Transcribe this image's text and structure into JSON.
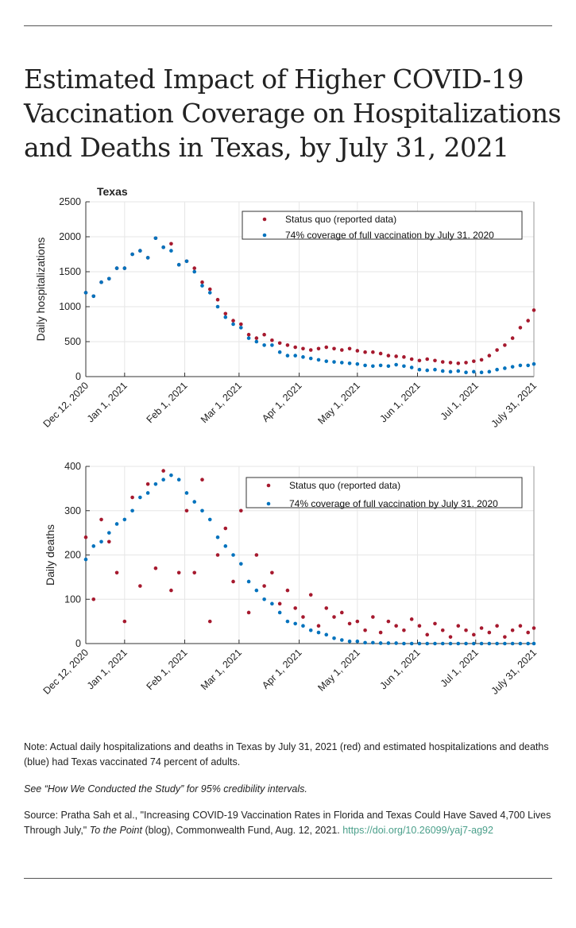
{
  "title": "Estimated Impact of Higher COVID-19 Vaccination Coverage on Hospitalizations and Deaths in Texas, by July 31, 2021",
  "colors": {
    "status_quo": "#a6192e",
    "coverage_74": "#0072bd",
    "link": "#4a9f8a"
  },
  "chart_data": [
    {
      "type": "scatter",
      "title": "Texas",
      "ylabel": "Daily hospitalizations",
      "xlabel": "",
      "ylim": [
        0,
        2500
      ],
      "yticks": [
        0,
        500,
        1000,
        1500,
        2000,
        2500
      ],
      "xlim": [
        "2020-12-12",
        "2021-07-31"
      ],
      "xticks": [
        {
          "date": "2020-12-12",
          "label": "Dec 12, 2020"
        },
        {
          "date": "2021-01-01",
          "label": "Jan 1, 2021"
        },
        {
          "date": "2021-02-01",
          "label": "Feb 1, 2021"
        },
        {
          "date": "2021-03-01",
          "label": "Mar 1, 2021"
        },
        {
          "date": "2021-04-01",
          "label": "Apr 1, 2021"
        },
        {
          "date": "2021-05-01",
          "label": "May 1, 2021"
        },
        {
          "date": "2021-06-01",
          "label": "Jun 1, 2021"
        },
        {
          "date": "2021-07-01",
          "label": "Jul 1, 2021"
        },
        {
          "date": "2021-07-31",
          "label": "July 31, 2021"
        }
      ],
      "grid": true,
      "legend_position": "top-right",
      "x": [
        "2020-12-12",
        "2020-12-16",
        "2020-12-20",
        "2020-12-24",
        "2020-12-28",
        "2021-01-01",
        "2021-01-05",
        "2021-01-09",
        "2021-01-13",
        "2021-01-17",
        "2021-01-21",
        "2021-01-25",
        "2021-01-29",
        "2021-02-02",
        "2021-02-06",
        "2021-02-10",
        "2021-02-14",
        "2021-02-18",
        "2021-02-22",
        "2021-02-26",
        "2021-03-02",
        "2021-03-06",
        "2021-03-10",
        "2021-03-14",
        "2021-03-18",
        "2021-03-22",
        "2021-03-26",
        "2021-03-30",
        "2021-04-03",
        "2021-04-07",
        "2021-04-11",
        "2021-04-15",
        "2021-04-19",
        "2021-04-23",
        "2021-04-27",
        "2021-05-01",
        "2021-05-05",
        "2021-05-09",
        "2021-05-13",
        "2021-05-17",
        "2021-05-21",
        "2021-05-25",
        "2021-05-29",
        "2021-06-02",
        "2021-06-06",
        "2021-06-10",
        "2021-06-14",
        "2021-06-18",
        "2021-06-22",
        "2021-06-26",
        "2021-06-30",
        "2021-07-04",
        "2021-07-08",
        "2021-07-12",
        "2021-07-16",
        "2021-07-20",
        "2021-07-24",
        "2021-07-28",
        "2021-07-31"
      ],
      "series": [
        {
          "name": "Status quo (reported data)",
          "color": "#a6192e",
          "values": [
            1200,
            1150,
            1350,
            1400,
            1550,
            1550,
            1750,
            1800,
            1700,
            1980,
            1850,
            1900,
            1600,
            1650,
            1550,
            1350,
            1250,
            1100,
            900,
            800,
            750,
            600,
            550,
            600,
            520,
            480,
            450,
            420,
            400,
            380,
            400,
            420,
            400,
            380,
            400,
            370,
            350,
            350,
            330,
            300,
            290,
            280,
            250,
            230,
            250,
            230,
            210,
            200,
            190,
            200,
            220,
            240,
            300,
            380,
            450,
            550,
            700,
            800,
            950
          ]
        },
        {
          "name": "74% coverage of full vaccination by July 31. 2020",
          "color": "#0072bd",
          "values": [
            1200,
            1150,
            1350,
            1400,
            1550,
            1550,
            1750,
            1800,
            1700,
            1980,
            1850,
            1800,
            1600,
            1650,
            1500,
            1300,
            1200,
            1000,
            850,
            750,
            700,
            550,
            500,
            450,
            450,
            350,
            300,
            300,
            280,
            260,
            240,
            220,
            210,
            200,
            190,
            180,
            160,
            150,
            160,
            150,
            170,
            150,
            130,
            100,
            90,
            100,
            80,
            70,
            80,
            60,
            70,
            60,
            70,
            100,
            120,
            140,
            160,
            160,
            180
          ]
        }
      ]
    },
    {
      "type": "scatter",
      "title": "",
      "ylabel": "Daily deaths",
      "xlabel": "",
      "ylim": [
        0,
        400
      ],
      "yticks": [
        0,
        100,
        200,
        300,
        400
      ],
      "xlim": [
        "2020-12-12",
        "2021-07-31"
      ],
      "xticks": [
        {
          "date": "2020-12-12",
          "label": "Dec 12, 2020"
        },
        {
          "date": "2021-01-01",
          "label": "Jan 1, 2021"
        },
        {
          "date": "2021-02-01",
          "label": "Feb 1, 2021"
        },
        {
          "date": "2021-03-01",
          "label": "Mar 1, 2021"
        },
        {
          "date": "2021-04-01",
          "label": "Apr 1, 2021"
        },
        {
          "date": "2021-05-01",
          "label": "May 1, 2021"
        },
        {
          "date": "2021-06-01",
          "label": "Jun 1, 2021"
        },
        {
          "date": "2021-07-01",
          "label": "Jul 1, 2021"
        },
        {
          "date": "2021-07-31",
          "label": "July 31, 2021"
        }
      ],
      "grid": true,
      "legend_position": "top-right",
      "x": [
        "2020-12-12",
        "2020-12-16",
        "2020-12-20",
        "2020-12-24",
        "2020-12-28",
        "2021-01-01",
        "2021-01-05",
        "2021-01-09",
        "2021-01-13",
        "2021-01-17",
        "2021-01-21",
        "2021-01-25",
        "2021-01-29",
        "2021-02-02",
        "2021-02-06",
        "2021-02-10",
        "2021-02-14",
        "2021-02-18",
        "2021-02-22",
        "2021-02-26",
        "2021-03-02",
        "2021-03-06",
        "2021-03-10",
        "2021-03-14",
        "2021-03-18",
        "2021-03-22",
        "2021-03-26",
        "2021-03-30",
        "2021-04-03",
        "2021-04-07",
        "2021-04-11",
        "2021-04-15",
        "2021-04-19",
        "2021-04-23",
        "2021-04-27",
        "2021-05-01",
        "2021-05-05",
        "2021-05-09",
        "2021-05-13",
        "2021-05-17",
        "2021-05-21",
        "2021-05-25",
        "2021-05-29",
        "2021-06-02",
        "2021-06-06",
        "2021-06-10",
        "2021-06-14",
        "2021-06-18",
        "2021-06-22",
        "2021-06-26",
        "2021-06-30",
        "2021-07-04",
        "2021-07-08",
        "2021-07-12",
        "2021-07-16",
        "2021-07-20",
        "2021-07-24",
        "2021-07-28",
        "2021-07-31"
      ],
      "series": [
        {
          "name": "Status quo (reported data)",
          "color": "#a6192e",
          "values": [
            240,
            100,
            280,
            230,
            160,
            50,
            330,
            130,
            360,
            170,
            390,
            120,
            160,
            300,
            160,
            370,
            50,
            200,
            260,
            140,
            300,
            70,
            200,
            130,
            160,
            90,
            120,
            80,
            60,
            110,
            40,
            80,
            60,
            70,
            45,
            50,
            30,
            60,
            25,
            50,
            40,
            30,
            55,
            40,
            20,
            45,
            30,
            15,
            40,
            30,
            20,
            35,
            25,
            40,
            15,
            30,
            40,
            25,
            35
          ]
        },
        {
          "name": "74% coverage of full vaccination by July 31. 2020",
          "color": "#0072bd",
          "values": [
            190,
            220,
            230,
            250,
            270,
            280,
            300,
            330,
            340,
            360,
            370,
            380,
            370,
            340,
            320,
            300,
            280,
            240,
            220,
            200,
            180,
            140,
            120,
            100,
            90,
            70,
            50,
            45,
            40,
            30,
            25,
            20,
            12,
            8,
            5,
            5,
            2,
            2,
            1,
            1,
            1,
            0,
            0,
            0,
            0,
            0,
            0,
            0,
            0,
            0,
            0,
            0,
            0,
            0,
            0,
            0,
            0,
            0,
            0
          ]
        }
      ]
    }
  ],
  "notes": {
    "note": "Note: Actual daily hospitalizations and deaths in Texas by July 31, 2021 (red) and estimated hospitalizations and deaths (blue) had Texas vaccinated 74 percent of adults.",
    "intervals": "See “How We Conducted the Study” for 95% credibility intervals.",
    "source_prefix": "Source: Pratha Sah et al., \"Increasing COVID-19 Vaccination Rates in Florida and Texas Could Have Saved 4,700 Lives Through July,\" ",
    "source_pub": "To the Point",
    "source_suffix": " (blog), Commonwealth Fund, Aug. 12, 2021. ",
    "source_link": "https://doi.org/10.26099/yaj7-ag92"
  }
}
